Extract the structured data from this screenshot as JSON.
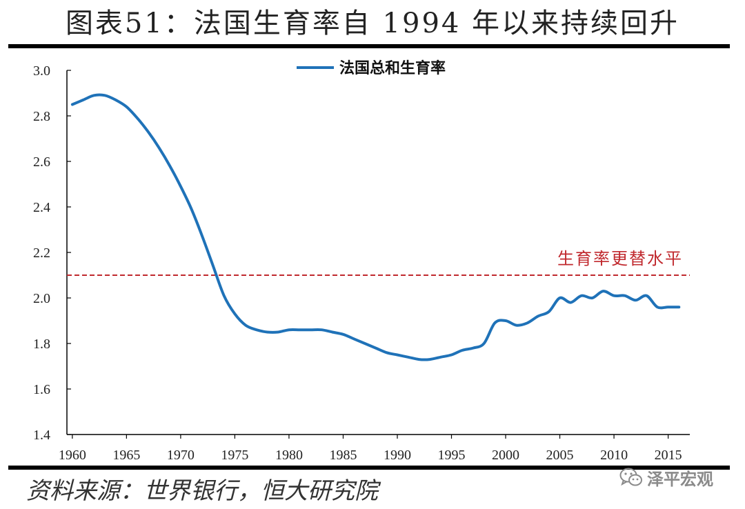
{
  "header": {
    "title": "图表51：法国生育率自 1994 年以来持续回升"
  },
  "footer": {
    "source": "资料来源：世界银行，恒大研究院",
    "watermark": "泽平宏观",
    "watermark_icon": "wechat-icon"
  },
  "colors": {
    "series": "#1f72b8",
    "reference": "#c0282d",
    "axis": "#000000",
    "rule": "#000000"
  },
  "chart_data": {
    "type": "line",
    "title": "图表51：法国生育率自 1994 年以来持续回升",
    "xlabel": "",
    "ylabel": "",
    "xlim": [
      1959.5,
      2017
    ],
    "ylim": [
      1.4,
      3.0
    ],
    "xticks": [
      1960,
      1965,
      1970,
      1975,
      1980,
      1985,
      1990,
      1995,
      2000,
      2005,
      2010,
      2015
    ],
    "xtick_labels": [
      "1960",
      "1965",
      "1970",
      "1975",
      "1980",
      "1985",
      "1990",
      "1995",
      "2000",
      "2005",
      "2010",
      "2015"
    ],
    "yticks": [
      1.4,
      1.6,
      1.8,
      2.0,
      2.2,
      2.4,
      2.6,
      2.8,
      3.0
    ],
    "ytick_labels": [
      "1.4",
      "1.6",
      "1.8",
      "2.0",
      "2.2",
      "2.4",
      "2.6",
      "2.8",
      "3.0"
    ],
    "grid": false,
    "legend": {
      "placement": "top-center",
      "entries": [
        "法国总和生育率"
      ]
    },
    "series": [
      {
        "name": "法国总和生育率",
        "x": [
          1960,
          1961,
          1962,
          1963,
          1964,
          1965,
          1966,
          1967,
          1968,
          1969,
          1970,
          1971,
          1972,
          1973,
          1974,
          1975,
          1976,
          1977,
          1978,
          1979,
          1980,
          1981,
          1982,
          1983,
          1984,
          1985,
          1986,
          1987,
          1988,
          1989,
          1990,
          1991,
          1992,
          1993,
          1994,
          1995,
          1996,
          1997,
          1998,
          1999,
          2000,
          2001,
          2002,
          2003,
          2004,
          2005,
          2006,
          2007,
          2008,
          2009,
          2010,
          2011,
          2012,
          2013,
          2014,
          2015,
          2016
        ],
        "values": [
          2.85,
          2.87,
          2.89,
          2.89,
          2.87,
          2.84,
          2.79,
          2.73,
          2.66,
          2.58,
          2.49,
          2.39,
          2.27,
          2.14,
          2.01,
          1.93,
          1.88,
          1.86,
          1.85,
          1.85,
          1.86,
          1.86,
          1.86,
          1.86,
          1.85,
          1.84,
          1.82,
          1.8,
          1.78,
          1.76,
          1.75,
          1.74,
          1.73,
          1.73,
          1.74,
          1.75,
          1.77,
          1.78,
          1.8,
          1.89,
          1.9,
          1.88,
          1.89,
          1.92,
          1.94,
          2.0,
          1.98,
          2.01,
          2.0,
          2.03,
          2.01,
          2.01,
          1.99,
          2.01,
          1.96,
          1.96,
          1.96
        ]
      }
    ],
    "reference_lines": [
      {
        "label": "生育率更替水平",
        "y": 2.1,
        "style": "dashed"
      }
    ]
  }
}
